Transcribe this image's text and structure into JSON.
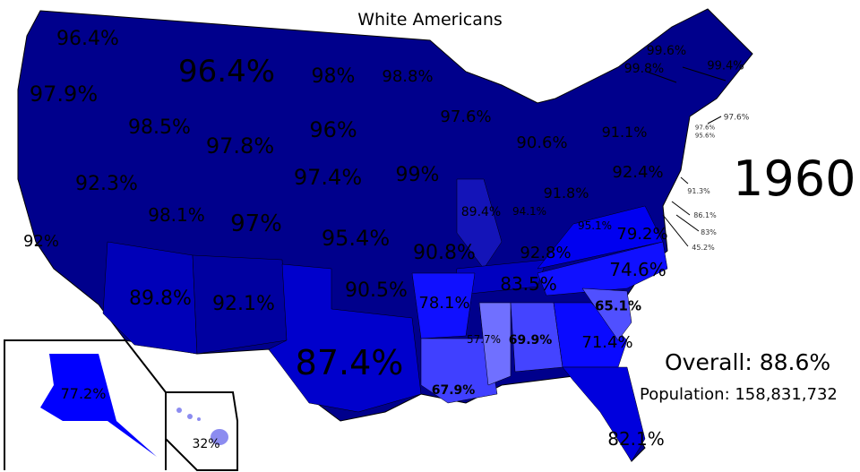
{
  "title": "White Americans",
  "year": "1960",
  "overall": "Overall: 88.6%",
  "population": "Population: 158,831,732",
  "colors": {
    "darkest": "#00008c",
    "dark": "#0000a8",
    "medium": "#0000e0",
    "bright": "#0000ff",
    "light": "#4848ff",
    "lightest": "#7777ff",
    "hawaii": "#8c8cf0",
    "border": "#000"
  },
  "states": {
    "WA": "96.4%",
    "MT": "96.4%",
    "ND": "98%",
    "MN": "98.8%",
    "OR": "97.9%",
    "ID": "98.5%",
    "WY": "97.8%",
    "SD": "96%",
    "WI": "97.6%",
    "NE": "97.4%",
    "IA": "99%",
    "MI": "90.6%",
    "NV": "92.3%",
    "UT": "98.1%",
    "CO": "97%",
    "KS": "95.4%",
    "MO": "90.8%",
    "IL": "89.4%",
    "IN": "94.1%",
    "OH": "91.8%",
    "PA": "92.4%",
    "NY": "91.1%",
    "WV": "95.1%",
    "KY": "92.8%",
    "CA": "92%",
    "AZ": "89.8%",
    "NM": "92.1%",
    "OK": "90.5%",
    "TX": "87.4%",
    "AR": "78.1%",
    "TN": "83.5%",
    "VA": "79.2%",
    "NC": "74.6%",
    "SC": "65.1%",
    "GA": "71.4%",
    "AL": "69.9%",
    "MS": "57.7%",
    "LA": "67.9%",
    "FL": "82.1%",
    "AK": "77.2%",
    "HI": "32%",
    "VT": "99.8%",
    "NH": "99.6%",
    "ME": "99.4%",
    "MA": "97.6%",
    "RI": "97.6%",
    "CT": "95.6%",
    "NJ": "91.3%",
    "DE": "86.1%",
    "MD": "83%",
    "DC": "45.2%"
  }
}
